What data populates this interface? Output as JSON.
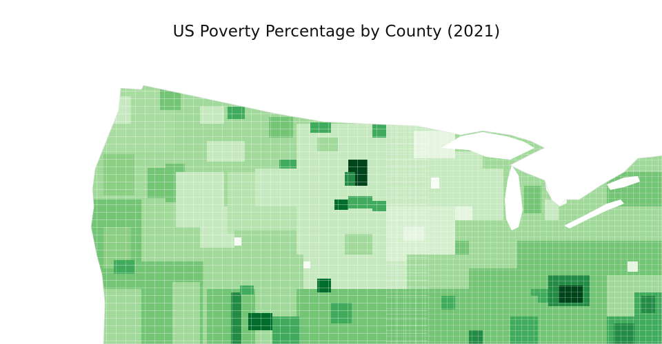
{
  "title": "US Poverty Percentage by County (2021)",
  "colorscale": [
    "#f7fcf5",
    "#e5f5e0",
    "#c7e9c0",
    "#a1d99b",
    "#74c476",
    "#41ab5d",
    "#238b45",
    "#006d2c",
    "#00441b"
  ],
  "county_border_color": "#ffffff",
  "background": "#ffffff"
}
